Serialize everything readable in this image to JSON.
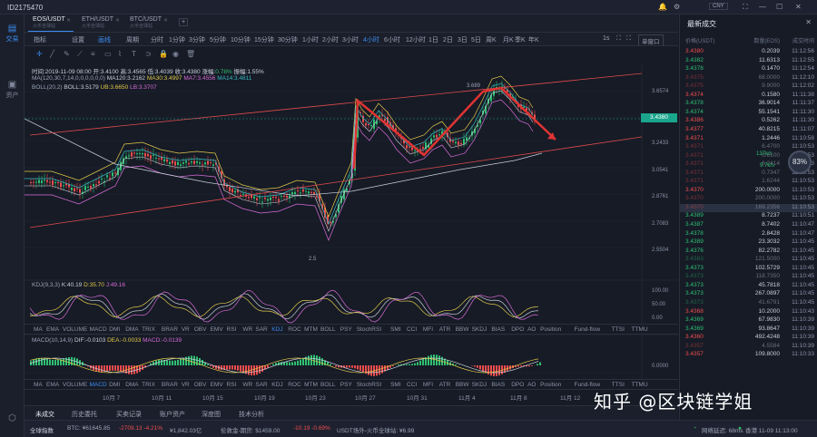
{
  "titlebar": {
    "user_id": "ID2175470",
    "currency": "CNY"
  },
  "leftnav": [
    {
      "label": "交易",
      "icon": "candle-icon"
    },
    {
      "label": "资产",
      "icon": "wallet-icon"
    }
  ],
  "symbol_tabs": [
    {
      "symbol": "EOS/USDT",
      "name": "火币全球站"
    },
    {
      "symbol": "ETH/USDT",
      "name": "火币全球站"
    },
    {
      "symbol": "BTC/USDT",
      "name": "火币全球站"
    }
  ],
  "toolbar": {
    "left": [
      "指标",
      "设置",
      "画线"
    ],
    "periods": [
      "周期",
      "分时",
      "1分钟",
      "3分钟",
      "5分钟",
      "10分钟",
      "15分钟",
      "30分钟",
      "1小时",
      "2小时",
      "3小时",
      "4小时",
      "6小时",
      "12小时",
      "1日",
      "2日",
      "3日",
      "5日",
      "周K",
      "月K",
      "季K",
      "年K"
    ],
    "active_period": "4小时",
    "right": [
      "1s"
    ],
    "layout": "单窗口"
  },
  "info": {
    "line1": {
      "time": "时间:2019-11-09 08:00",
      "open": "开:3.4100",
      "high": "高:3.4565",
      "low": "低:3.4039",
      "close": "收:3.4380",
      "change_label": "涨幅:",
      "change": "0.78%",
      "amp": "振幅:1.55%"
    },
    "line2": {
      "ma": "MA(120,30,7,14,0,0,0,0,0,0)",
      "ma120": "MA120:3.2162",
      "ma30": "MA30:3.4997",
      "ma7": "MA7:3.4556",
      "ma14": "MA14:3.4811"
    },
    "line3": {
      "boll": "BOLL(20,2)",
      "mid": "BOLL:3.5179",
      "ub": "UB:3.6650",
      "lb": "LB:3.3707"
    }
  },
  "price_axis": [
    "3.6574",
    "3.4380",
    "3.2433",
    "3.0541",
    "2.8761",
    "2.7083",
    "2.5504"
  ],
  "current_price": "3.4380",
  "annotations": {
    "high": "3.689",
    "low": "2.5"
  },
  "kdj": {
    "label": "KDJ(9,3,3)",
    "k": "K:40.19",
    "d": "D:35.70",
    "j": "J:49.16",
    "axis": [
      "100.00",
      "50.00",
      "0.00"
    ]
  },
  "macd": {
    "label": "MACD(10,14,9)",
    "dif": "DIF:-0.0103",
    "dea": "DEA:-0.0033",
    "macd": "MACD:-0.0139",
    "axis": [
      "0.0000"
    ]
  },
  "indicator_tabs": [
    "MA",
    "EMA",
    "VOLUME",
    "MACD",
    "DMI",
    "DMA",
    "TRIX",
    "BRAR",
    "VR",
    "OBV",
    "EMV",
    "RSI",
    "WR",
    "SAR",
    "KDJ",
    "ROC",
    "MTM",
    "BOLL",
    "PSY",
    "StochRSI",
    "SMI",
    "CCI",
    "MFI",
    "ATR",
    "BBW",
    "SKDJ",
    "BIAS",
    "DPO",
    "AO",
    "Position",
    "Fund-flow",
    "TTSI",
    "TTMU"
  ],
  "indicator_tabs_active1": "KDJ",
  "indicator_tabs_active2": "MACD",
  "date_axis": [
    "10月 7",
    "10月 11",
    "10月 15",
    "10月 19",
    "10月 23",
    "10月 27",
    "10月 31",
    "11月 4",
    "11月 8",
    "11月 12"
  ],
  "bottom_tabs": [
    "未成交",
    "历史委托",
    "买卖记录",
    "账户资产",
    "深度图",
    "技术分析"
  ],
  "status": {
    "index_label": "全球指数",
    "btc": "BTC: ¥61645.85",
    "btc_chg": "-2709.13 -4.21%",
    "btc_vol": "¥1,842.03亿",
    "ex": "伦敦金-期货: $1459.00",
    "ex_chg": "-10.19 -0.69%",
    "usdt": "USDT场外-火币全球站: ¥6.99",
    "conn": "网络延迟: 68ms",
    "time": "香港 11-09 11:13:00"
  },
  "trades": {
    "title": "最新成交",
    "headers": [
      "价格(USDT)",
      "数量(EOS)",
      "成交时间"
    ],
    "rows": [
      [
        "3.4380",
        "0.2039",
        "11:12:56",
        "r",
        false
      ],
      [
        "3.4382",
        "11.6313",
        "11:12:55",
        "g",
        false
      ],
      [
        "3.4378",
        "0.1470",
        "11:12:54",
        "g",
        false
      ],
      [
        "3.4375",
        "68.0000",
        "11:12:10",
        "r",
        true
      ],
      [
        "3.4375",
        "9.9000",
        "11:12:02",
        "r",
        true
      ],
      [
        "3.4374",
        "0.1580",
        "11:11:38",
        "r",
        false
      ],
      [
        "3.4378",
        "36.9014",
        "11:11:37",
        "g",
        false
      ],
      [
        "3.4374",
        "55.1541",
        "11:11:30",
        "g",
        false
      ],
      [
        "3.4386",
        "0.5262",
        "11:11:30",
        "r",
        false
      ],
      [
        "3.4377",
        "40.8215",
        "11:11:07",
        "r",
        false
      ],
      [
        "3.4371",
        "1.2446",
        "11:10:58",
        "r",
        false
      ],
      [
        "3.4371",
        "6.4700",
        "11:10:53",
        "r",
        true
      ],
      [
        "3.4371",
        "0.6100",
        "11:10:53",
        "r",
        true
      ],
      [
        "3.4371",
        "6.2414",
        "11:10:53",
        "r",
        true
      ],
      [
        "3.4371",
        "0.7347",
        "11:10:53",
        "r",
        true
      ],
      [
        "3.4371",
        "1.6244",
        "11:10:53",
        "r",
        true
      ],
      [
        "3.4370",
        "200.0000",
        "11:10:53",
        "r",
        false
      ],
      [
        "3.4370",
        "200.0000",
        "11:10:53",
        "r",
        true
      ],
      [
        "3.4370",
        "169.2356",
        "11:10:53",
        "r",
        true
      ],
      [
        "3.4389",
        "8.7237",
        "11:10:51",
        "g",
        false
      ],
      [
        "3.4387",
        "8.7402",
        "11:10:47",
        "g",
        false
      ],
      [
        "3.4378",
        "2.8428",
        "11:10:47",
        "g",
        false
      ],
      [
        "3.4389",
        "23.3032",
        "11:10:45",
        "g",
        false
      ],
      [
        "3.4376",
        "82.2782",
        "11:10:45",
        "g",
        false
      ],
      [
        "3.4383",
        "121.5000",
        "11:10:45",
        "g",
        true
      ],
      [
        "3.4373",
        "102.5729",
        "11:10:45",
        "g",
        false
      ],
      [
        "3.4373",
        "118.7350",
        "11:10:45",
        "g",
        true
      ],
      [
        "3.4373",
        "45.7818",
        "11:10:45",
        "g",
        false
      ],
      [
        "3.4373",
        "267.0897",
        "11:10:45",
        "g",
        false
      ],
      [
        "3.4373",
        "41.6791",
        "11:10:45",
        "g",
        true
      ],
      [
        "3.4368",
        "10.2000",
        "11:10:43",
        "r",
        false
      ],
      [
        "3.4369",
        "67.9830",
        "11:10:39",
        "g",
        false
      ],
      [
        "3.4369",
        "93.8647",
        "11:10:39",
        "g",
        false
      ],
      [
        "3.4360",
        "492.4248",
        "11:10:39",
        "r",
        false
      ],
      [
        "3.4357",
        "4.5584",
        "11:10:39",
        "r",
        true
      ],
      [
        "3.4357",
        "109.8000",
        "11:10:33",
        "r",
        false
      ]
    ]
  },
  "gauge": {
    "pct": "83%",
    "up": "137k/s",
    "down": "9.7k/s"
  },
  "watermark": "知乎 @区块链学姐",
  "colors": {
    "up": "#2fbf71",
    "down": "#ef4d4d",
    "accent": "#3c8cf0"
  }
}
